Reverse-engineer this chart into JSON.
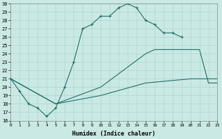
{
  "xlabel": "Humidex (Indice chaleur)",
  "background_color": "#cae9e4",
  "grid_color": "#aed4ce",
  "line_color": "#1e7068",
  "xlim": [
    0,
    23
  ],
  "ylim": [
    16,
    30
  ],
  "xticks": [
    0,
    1,
    2,
    3,
    4,
    5,
    6,
    7,
    8,
    9,
    10,
    11,
    12,
    13,
    14,
    15,
    16,
    17,
    18,
    19,
    20,
    21,
    22,
    23
  ],
  "yticks": [
    16,
    17,
    18,
    19,
    20,
    21,
    22,
    23,
    24,
    25,
    26,
    27,
    28,
    29,
    30
  ],
  "line1_x": [
    0,
    1,
    2,
    3,
    4,
    5,
    6,
    7,
    8,
    9,
    10,
    11,
    12,
    13,
    14,
    15,
    16,
    17,
    18,
    19
  ],
  "line1_y": [
    21,
    19.5,
    18,
    17.5,
    16.5,
    17.5,
    20,
    23,
    27,
    27.5,
    28.5,
    28.5,
    29.5,
    30,
    29.5,
    28,
    27.5,
    26.5,
    26.5,
    26
  ],
  "line2_x": [
    0,
    5,
    10,
    15,
    16,
    20,
    21,
    22,
    23
  ],
  "line2_y": [
    21,
    18,
    20,
    24,
    24.5,
    24.5,
    24.5,
    20.5,
    20.5
  ],
  "line3_x": [
    0,
    5,
    10,
    15,
    20,
    21,
    22,
    23
  ],
  "line3_y": [
    21,
    18,
    19,
    20.5,
    21,
    21,
    21,
    21
  ]
}
